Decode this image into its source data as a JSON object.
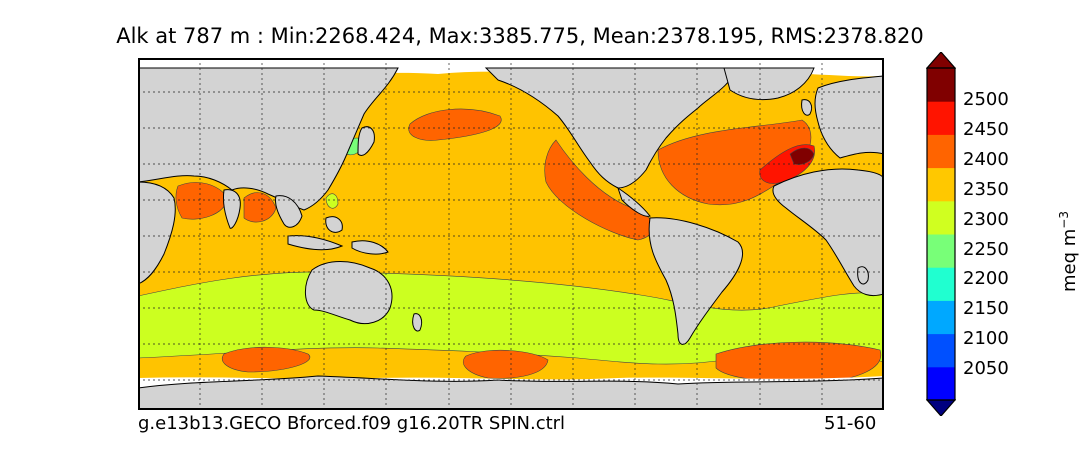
{
  "title": "Alk at 787 m : Min:2268.424, Max:3385.775, Mean:2378.195, RMS:2378.820",
  "colorbar": {
    "ticks": [
      "2500",
      "2450",
      "2400",
      "2350",
      "2300",
      "2250",
      "2200",
      "2150",
      "2100",
      "2050"
    ],
    "units_text": "meq m",
    "units_exp": "−3",
    "colors": [
      "#000080",
      "#0000ff",
      "#0050ff",
      "#00a8ff",
      "#20ffd0",
      "#78ff78",
      "#d0ff20",
      "#ffc800",
      "#ff6400",
      "#ff1400",
      "#800000"
    ]
  },
  "footer": {
    "case": "g.e13b13.GECO Bforced.f09 g16.20TR SPIN.ctrl",
    "years": "51-60"
  },
  "map_colors": {
    "land": "#d3d3d3",
    "c2350": "#ffc300",
    "c2400": "#ff6400",
    "c2300": "#ccff20",
    "c2450": "#ff1400",
    "c2500": "#800000",
    "c2250": "#78ff78",
    "ice": "#ffffff"
  }
}
